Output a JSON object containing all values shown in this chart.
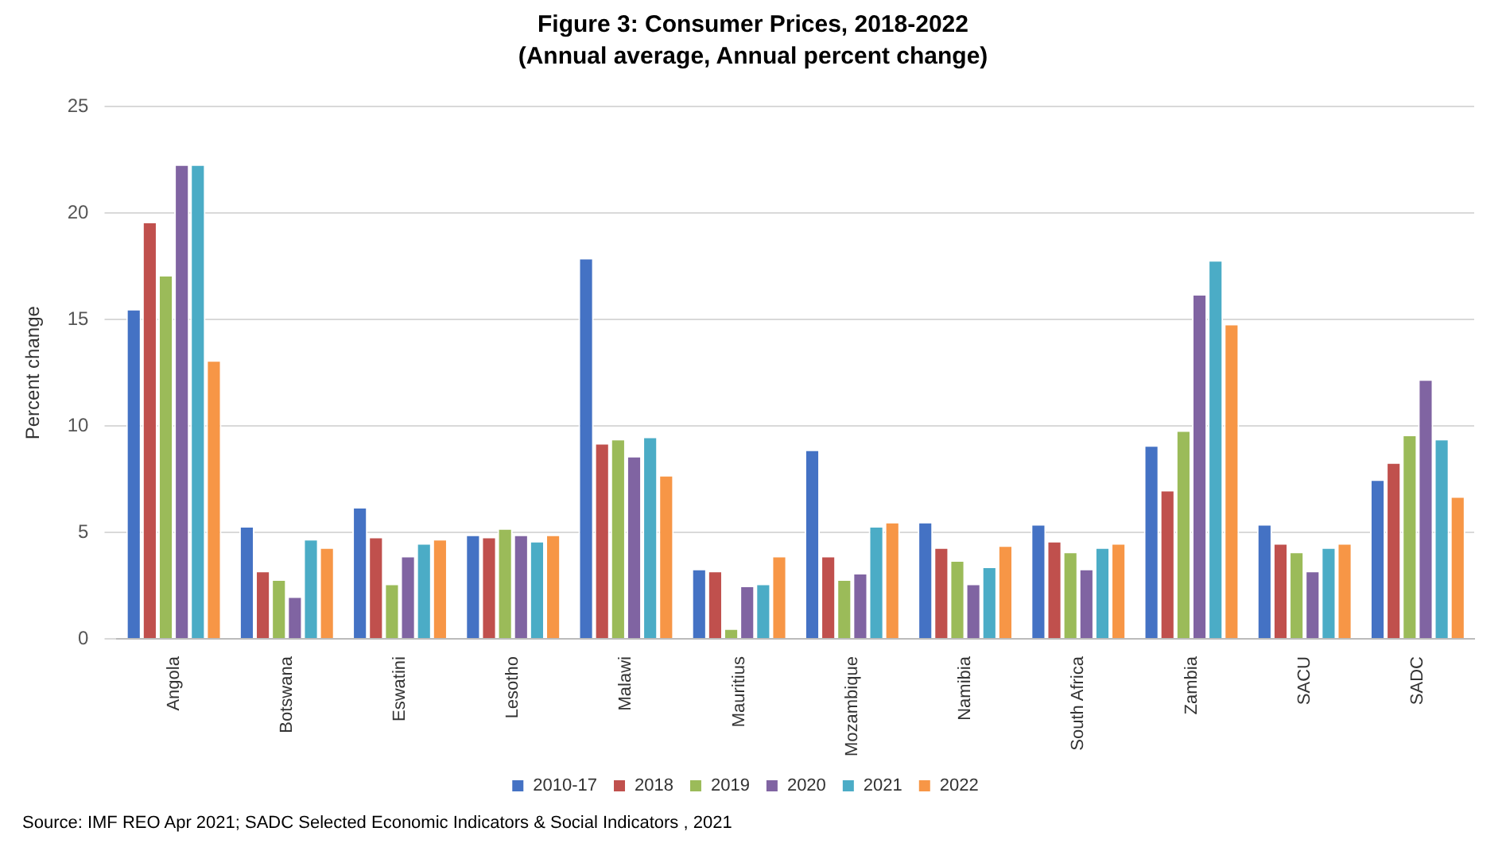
{
  "chart_data": {
    "type": "bar",
    "title": "Figure 3: Consumer Prices, 2018-2022",
    "subtitle": "(Annual average, Annual percent change)",
    "ylabel": "Percent change",
    "categories": [
      "Angola",
      "Botswana",
      "Eswatini",
      "Lesotho",
      "Malawi",
      "Mauritius",
      "Mozambique",
      "Namibia",
      "South Africa",
      "Zambia",
      "SACU",
      "SADC"
    ],
    "series": [
      {
        "name": "2010-17",
        "color": "#4472c4",
        "values": [
          15.5,
          5.3,
          6.2,
          4.9,
          17.9,
          3.3,
          8.9,
          5.5,
          5.4,
          9.1,
          5.4,
          7.5
        ]
      },
      {
        "name": "2018",
        "color": "#c0504d",
        "values": [
          19.6,
          3.2,
          4.8,
          4.8,
          9.2,
          3.2,
          3.9,
          4.3,
          4.6,
          7.0,
          4.5,
          8.3
        ]
      },
      {
        "name": "2019",
        "color": "#9bbb59",
        "values": [
          17.1,
          2.8,
          2.6,
          5.2,
          9.4,
          0.5,
          2.8,
          3.7,
          4.1,
          9.8,
          4.1,
          9.6
        ]
      },
      {
        "name": "2020",
        "color": "#8064a2",
        "values": [
          22.3,
          2.0,
          3.9,
          4.9,
          8.6,
          2.5,
          3.1,
          2.6,
          3.3,
          16.2,
          3.2,
          12.2
        ]
      },
      {
        "name": "2021",
        "color": "#4bacc6",
        "values": [
          22.3,
          4.7,
          4.5,
          4.6,
          9.5,
          2.6,
          5.3,
          3.4,
          4.3,
          17.8,
          4.3,
          9.4
        ]
      },
      {
        "name": "2022",
        "color": "#f79646",
        "values": [
          13.1,
          4.3,
          4.7,
          4.9,
          7.7,
          3.9,
          5.5,
          4.4,
          4.5,
          14.8,
          4.5,
          6.7
        ]
      }
    ],
    "ylim": [
      0,
      25
    ],
    "yticks": [
      0,
      5,
      10,
      15,
      20,
      25
    ],
    "grid": "y",
    "legend": "bottom",
    "annotations": [
      "Source: IMF REO Apr 2021;  SADC Selected Economic Indicators & Social Indicators , 2021"
    ]
  }
}
